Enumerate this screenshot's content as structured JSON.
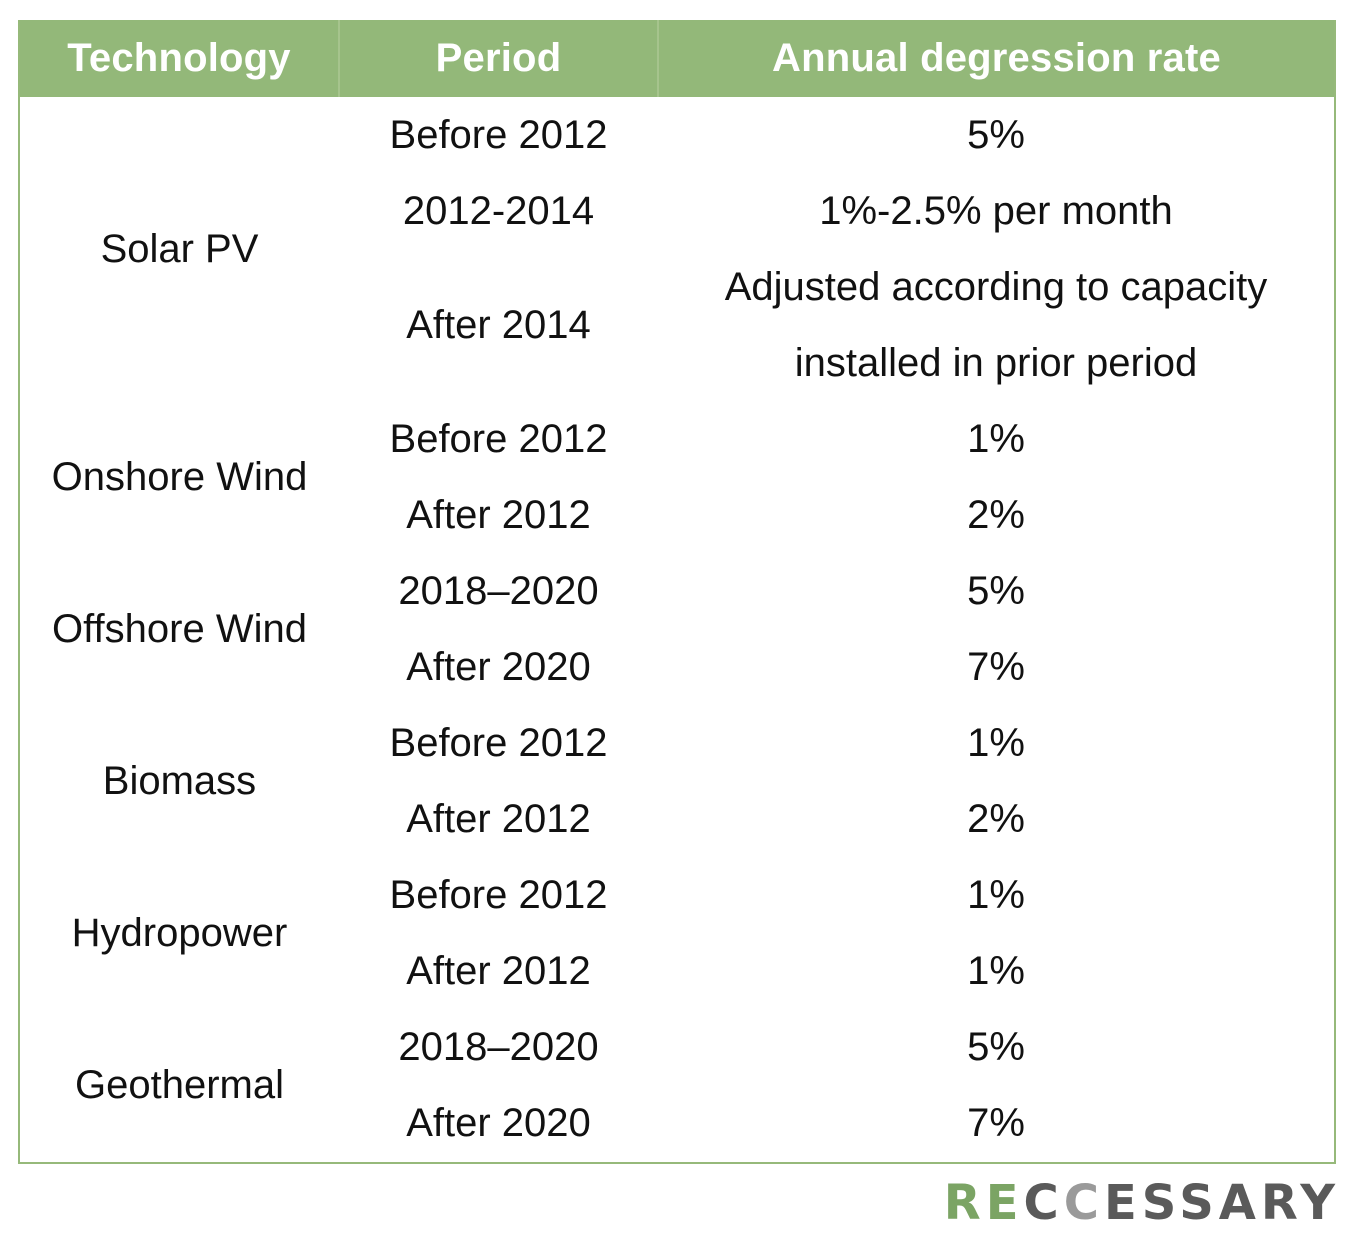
{
  "table": {
    "headers": [
      "Technology",
      "Period",
      "Annual degression rate"
    ],
    "groups": [
      {
        "technology": "Solar PV",
        "rows": [
          {
            "period": "Before 2012",
            "rate": "5%"
          },
          {
            "period": "2012-2014",
            "rate": "1%-2.5% per month"
          },
          {
            "period": "After 2014",
            "rate_lines": [
              "Adjusted according to capacity",
              "installed in prior period"
            ]
          }
        ]
      },
      {
        "technology": "Onshore Wind",
        "rows": [
          {
            "period": "Before 2012",
            "rate": "1%"
          },
          {
            "period": "After 2012",
            "rate": "2%"
          }
        ]
      },
      {
        "technology": "Offshore Wind",
        "rows": [
          {
            "period": "2018–2020",
            "rate": "5%"
          },
          {
            "period": "After 2020",
            "rate": "7%"
          }
        ]
      },
      {
        "technology": "Biomass",
        "rows": [
          {
            "period": "Before 2012",
            "rate": "1%"
          },
          {
            "period": "After 2012",
            "rate": "2%"
          }
        ]
      },
      {
        "technology": "Hydropower",
        "rows": [
          {
            "period": "Before 2012",
            "rate": "1%"
          },
          {
            "period": "After 2012",
            "rate": "1%"
          }
        ]
      },
      {
        "technology": "Geothermal",
        "rows": [
          {
            "period": "2018–2020",
            "rate": "5%"
          },
          {
            "period": "After 2020",
            "rate": "7%"
          }
        ]
      }
    ]
  },
  "logo": {
    "part1": "RE",
    "part2": "C",
    "part3": "C",
    "part4": "ESSARY",
    "colors": {
      "green": "#7ba464",
      "dark": "#5a5a5a",
      "light": "#9a9a9a"
    }
  },
  "colors": {
    "header_bg": "#93b879",
    "border": "#96b97a"
  }
}
